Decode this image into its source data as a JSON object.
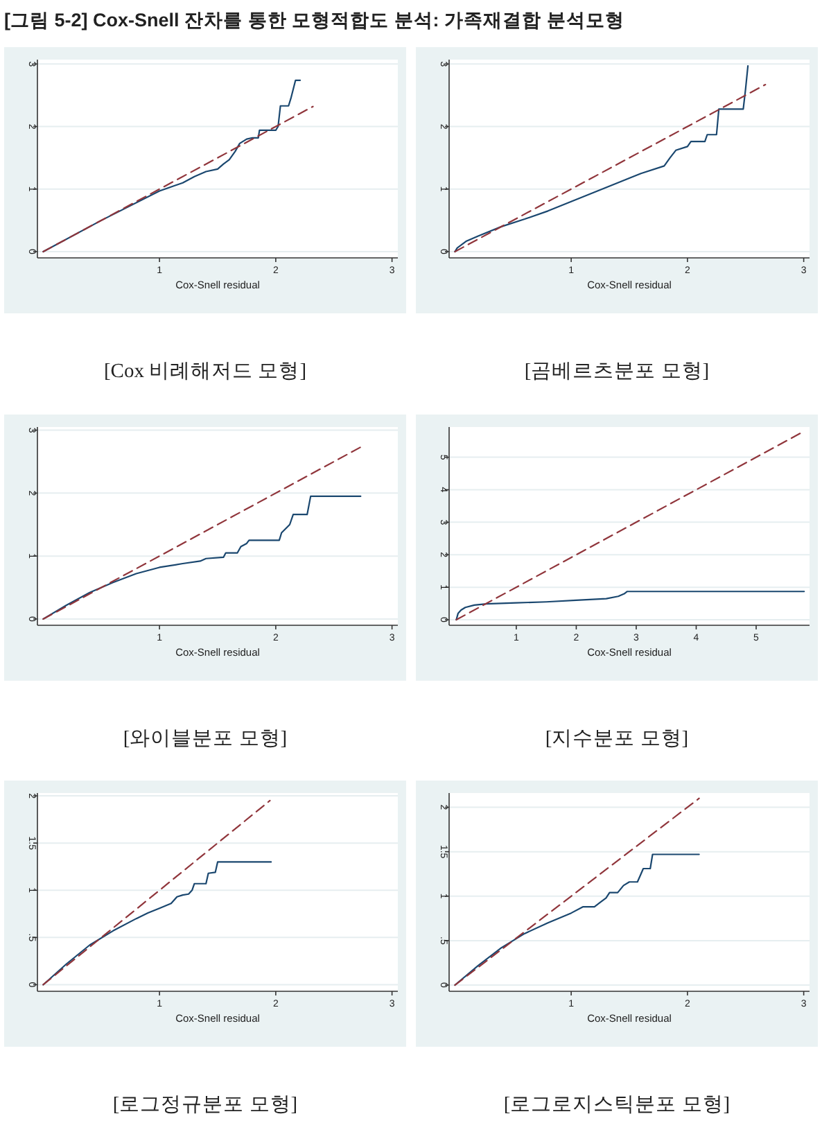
{
  "chart_data": [
    {
      "type": "line",
      "title": "[Cox 비례해저드 모형]",
      "xlabel": "Cox-Snell residual",
      "annotations": [
        "[그림 5-2] Cox-Snell 잔차를 통한 모형적합도 분석: 가족재결합 분석모형"
      ],
      "xlim": [
        -0.05,
        3.05
      ],
      "ylim": [
        -0.1,
        3.07
      ],
      "xticks": [
        1,
        2,
        3
      ],
      "yticks": [
        0,
        1,
        2,
        3
      ],
      "grid": "y",
      "series": [
        {
          "color": "#1a476f",
          "x": [
            0,
            0.5,
            1,
            1.2,
            1.3,
            1.4,
            1.5,
            1.55,
            1.6,
            1.65,
            1.69,
            1.75,
            1.8,
            1.85,
            1.86,
            2.0,
            2.02,
            2.04,
            2.11,
            2.13,
            2.17,
            2.21
          ],
          "values": [
            0,
            0.5,
            0.97,
            1.1,
            1.2,
            1.28,
            1.32,
            1.4,
            1.47,
            1.6,
            1.73,
            1.8,
            1.82,
            1.82,
            1.94,
            1.94,
            2.0,
            2.33,
            2.33,
            2.45,
            2.74,
            2.74
          ]
        },
        {
          "color": "#90353b",
          "line_style": "dashed",
          "x": [
            0,
            2.32
          ],
          "values": [
            0,
            2.32
          ]
        }
      ]
    },
    {
      "type": "line",
      "title": "[곰베르츠분포 모형]",
      "xlabel": "Cox-Snell residual",
      "xlim": [
        -0.05,
        3.05
      ],
      "ylim": [
        -0.1,
        3.07
      ],
      "xticks": [
        1,
        2,
        3
      ],
      "yticks": [
        0,
        1,
        2,
        3
      ],
      "grid": "y",
      "series": [
        {
          "color": "#1a476f",
          "x": [
            0,
            0.02,
            0.05,
            0.1,
            0.2,
            0.4,
            0.6,
            0.8,
            1,
            1.2,
            1.4,
            1.6,
            1.8,
            1.85,
            1.9,
            2.0,
            2.03,
            2.15,
            2.17,
            2.25,
            2.27,
            2.48,
            2.5,
            2.52
          ],
          "values": [
            0,
            0.06,
            0.1,
            0.17,
            0.25,
            0.4,
            0.52,
            0.65,
            0.8,
            0.95,
            1.1,
            1.25,
            1.37,
            1.5,
            1.62,
            1.68,
            1.76,
            1.76,
            1.87,
            1.87,
            2.28,
            2.28,
            2.6,
            2.97
          ]
        },
        {
          "color": "#90353b",
          "line_style": "dashed",
          "x": [
            0,
            2.67
          ],
          "values": [
            0,
            2.67
          ]
        }
      ]
    },
    {
      "type": "line",
      "title": "[와이블분포 모형]",
      "xlabel": "Cox-Snell residual",
      "xlim": [
        -0.05,
        3.05
      ],
      "ylim": [
        -0.1,
        3.05
      ],
      "xticks": [
        1,
        2,
        3
      ],
      "yticks": [
        0,
        1,
        2,
        3
      ],
      "grid": "y",
      "series": [
        {
          "color": "#1a476f",
          "x": [
            0,
            0.2,
            0.4,
            0.6,
            0.8,
            1,
            1.2,
            1.35,
            1.4,
            1.55,
            1.57,
            1.67,
            1.7,
            1.75,
            1.77,
            2.03,
            2.05,
            2.12,
            2.15,
            2.27,
            2.3,
            2.73
          ],
          "values": [
            0,
            0.22,
            0.42,
            0.58,
            0.72,
            0.82,
            0.88,
            0.92,
            0.96,
            0.98,
            1.05,
            1.05,
            1.15,
            1.2,
            1.25,
            1.25,
            1.37,
            1.5,
            1.66,
            1.66,
            1.95,
            1.95
          ]
        },
        {
          "color": "#90353b",
          "line_style": "dashed",
          "x": [
            0,
            2.73
          ],
          "values": [
            0,
            2.73
          ]
        }
      ]
    },
    {
      "type": "line",
      "title": "[지수분포 모형]",
      "xlabel": "Cox-Snell residual",
      "xlim": [
        -0.12,
        5.89
      ],
      "ylim": [
        -0.17,
        5.93
      ],
      "xticks": [
        1,
        2,
        3,
        4,
        5
      ],
      "yticks": [
        0,
        1,
        2,
        3,
        4,
        5
      ],
      "grid": "y",
      "series": [
        {
          "color": "#1a476f",
          "x": [
            0,
            0.03,
            0.08,
            0.15,
            0.3,
            0.5,
            1,
            1.5,
            2,
            2.5,
            2.7,
            2.8,
            2.85,
            5.8
          ],
          "values": [
            0,
            0.2,
            0.3,
            0.38,
            0.45,
            0.49,
            0.52,
            0.55,
            0.6,
            0.65,
            0.72,
            0.8,
            0.87,
            0.87
          ]
        },
        {
          "color": "#90353b",
          "line_style": "dashed",
          "x": [
            0,
            5.79
          ],
          "values": [
            0,
            5.79
          ]
        }
      ]
    },
    {
      "type": "line",
      "title": "[로그정규분포 모형]",
      "xlabel": "Cox-Snell residual",
      "xlim": [
        -0.05,
        3.05
      ],
      "ylim": [
        -0.07,
        2.03
      ],
      "xticks": [
        1,
        2,
        3
      ],
      "yticks": [
        0,
        {
          "value": 0.5,
          "label": ".5"
        },
        1,
        1.5,
        2
      ],
      "grid": "y",
      "series": [
        {
          "color": "#1a476f",
          "x": [
            0,
            0.2,
            0.4,
            0.6,
            0.8,
            0.9,
            1,
            1.1,
            1.15,
            1.2,
            1.25,
            1.28,
            1.3,
            1.4,
            1.42,
            1.48,
            1.5,
            1.96
          ],
          "values": [
            0,
            0.22,
            0.42,
            0.57,
            0.7,
            0.76,
            0.81,
            0.86,
            0.93,
            0.95,
            0.96,
            1.0,
            1.07,
            1.07,
            1.18,
            1.19,
            1.3,
            1.3
          ]
        },
        {
          "color": "#90353b",
          "line_style": "dashed",
          "x": [
            0,
            1.95
          ],
          "values": [
            0,
            1.95
          ]
        }
      ]
    },
    {
      "type": "line",
      "title": "[로그로지스틱분포 모형]",
      "xlabel": "Cox-Snell residual",
      "xlim": [
        -0.05,
        3.05
      ],
      "ylim": [
        -0.07,
        2.16
      ],
      "xticks": [
        1,
        2,
        3
      ],
      "yticks": [
        0,
        {
          "value": 0.5,
          "label": ".5"
        },
        1,
        1.5,
        2
      ],
      "grid": "y",
      "series": [
        {
          "color": "#1a476f",
          "x": [
            0,
            0.2,
            0.4,
            0.6,
            0.8,
            1,
            1.1,
            1.2,
            1.25,
            1.3,
            1.33,
            1.4,
            1.45,
            1.5,
            1.57,
            1.6,
            1.62,
            1.68,
            1.7,
            2.1
          ],
          "values": [
            0,
            0.22,
            0.42,
            0.58,
            0.7,
            0.81,
            0.88,
            0.88,
            0.93,
            0.98,
            1.04,
            1.04,
            1.12,
            1.16,
            1.16,
            1.25,
            1.31,
            1.31,
            1.47,
            1.47
          ]
        },
        {
          "color": "#90353b",
          "line_style": "dashed",
          "x": [
            0,
            2.1
          ],
          "values": [
            0,
            2.1
          ]
        }
      ]
    }
  ]
}
